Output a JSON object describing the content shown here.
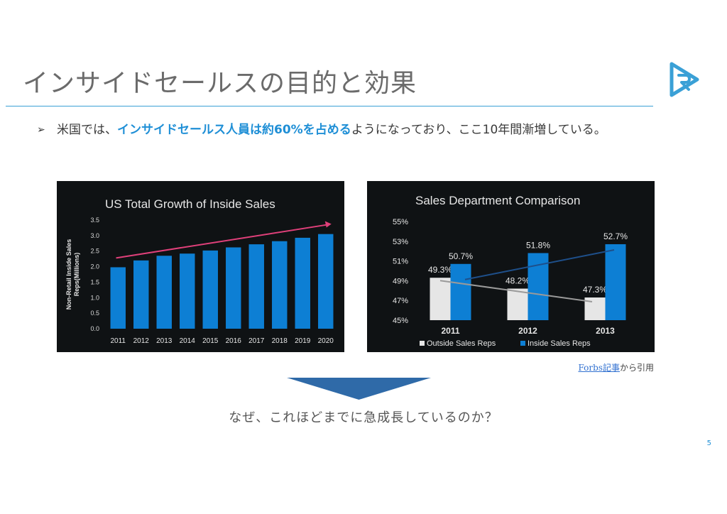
{
  "slide": {
    "title": "インサイドセールスの目的と効果",
    "bullet_marker": "➢",
    "bullet_prefix": "米国では、",
    "bullet_highlight": "インサイドセールス人員は約60%を占める",
    "bullet_suffix": "ようになっており、ここ10年間漸増している。",
    "source_link": "Forbs記事",
    "source_suffix": "から引用",
    "question": "なぜ、これほどまでに急成長しているのか？",
    "page_number": "5"
  },
  "colors": {
    "accent": "#1f8fd6",
    "bar_blue": "#0d7fd4",
    "bar_white": "#e6e6e6",
    "trend_pink": "#e0407a",
    "arrow_fill": "#2f6aa8"
  },
  "chart_data": [
    {
      "type": "bar",
      "title": "US Total Growth of Inside Sales",
      "ylabel": "Non-Retail Inside Sales Reps(Millions)",
      "xlabel": "",
      "categories": [
        "2011",
        "2012",
        "2013",
        "2014",
        "2015",
        "2016",
        "2017",
        "2018",
        "2019",
        "2020"
      ],
      "values": [
        1.98,
        2.2,
        2.35,
        2.42,
        2.52,
        2.62,
        2.72,
        2.82,
        2.93,
        3.05
      ],
      "ylim": [
        0,
        3.5
      ],
      "yticks": [
        "0.0",
        "0.5",
        "1.0",
        "1.5",
        "2.0",
        "2.5",
        "3.0",
        "3.5"
      ],
      "trend_line": true,
      "grid": false
    },
    {
      "type": "bar",
      "title": "Sales Department Comparison",
      "categories": [
        "2011",
        "2012",
        "2013"
      ],
      "ylim": [
        45,
        55
      ],
      "yticks": [
        "45%",
        "47%",
        "49%",
        "51%",
        "53%",
        "55%"
      ],
      "series": [
        {
          "name": "Outside Sales Reps",
          "values": [
            49.3,
            48.2,
            47.3
          ],
          "labels": [
            "49.3%",
            "48.2%",
            "47.3%"
          ]
        },
        {
          "name": "Inside Sales Reps",
          "values": [
            50.7,
            51.8,
            52.7
          ],
          "labels": [
            "50.7%",
            "51.8%",
            "52.7%"
          ]
        }
      ],
      "legend": "bottom",
      "grid": false
    }
  ]
}
